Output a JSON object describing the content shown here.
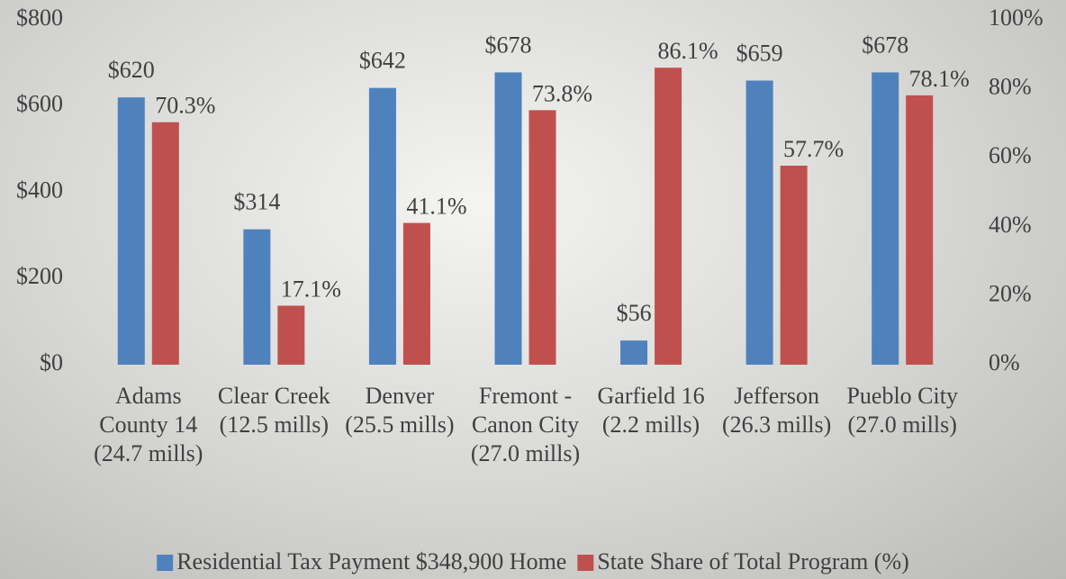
{
  "chart_data": {
    "type": "bar",
    "categories": [
      "Adams County 14 (24.7 mills)",
      "Clear Creek (12.5 mills)",
      "Denver (25.5 mills)",
      "Fremont - Canon City (27.0 mills)",
      "Garfield 16 (2.2 mills)",
      "Jefferson (26.3 mills)",
      "Pueblo City (27.0 mills)"
    ],
    "series": [
      {
        "name": "Residential Tax Payment $348,900 Home",
        "color": "#4f81bd",
        "values": [
          620,
          314,
          642,
          678,
          56,
          659,
          678
        ],
        "value_labels": [
          "$620",
          "$314",
          "$642",
          "$678",
          "$56",
          "$659",
          "$678"
        ]
      },
      {
        "name": "State Share of Total Program (%)",
        "color": "#c0504d",
        "axis": "y2",
        "values": [
          70.3,
          17.1,
          41.1,
          73.8,
          86.1,
          57.7,
          78.1
        ],
        "value_labels": [
          "70.3%",
          "17.1%",
          "41.1%",
          "73.8%",
          "86.1%",
          "57.7%",
          "78.1%"
        ]
      }
    ],
    "ylim": [
      0,
      800
    ],
    "yticks": [
      {
        "value": 0,
        "label": "$0"
      },
      {
        "value": 200,
        "label": "$200"
      },
      {
        "value": 400,
        "label": "$400"
      },
      {
        "value": 600,
        "label": "$600"
      },
      {
        "value": 800,
        "label": "$800"
      }
    ],
    "y2lim": [
      0,
      100
    ],
    "y2ticks": [
      {
        "value": 0,
        "label": "0%"
      },
      {
        "value": 20,
        "label": "20%"
      },
      {
        "value": 40,
        "label": "40%"
      },
      {
        "value": 60,
        "label": "60%"
      },
      {
        "value": 80,
        "label": "80%"
      },
      {
        "value": 100,
        "label": "100%"
      }
    ],
    "legend": "bottom"
  }
}
